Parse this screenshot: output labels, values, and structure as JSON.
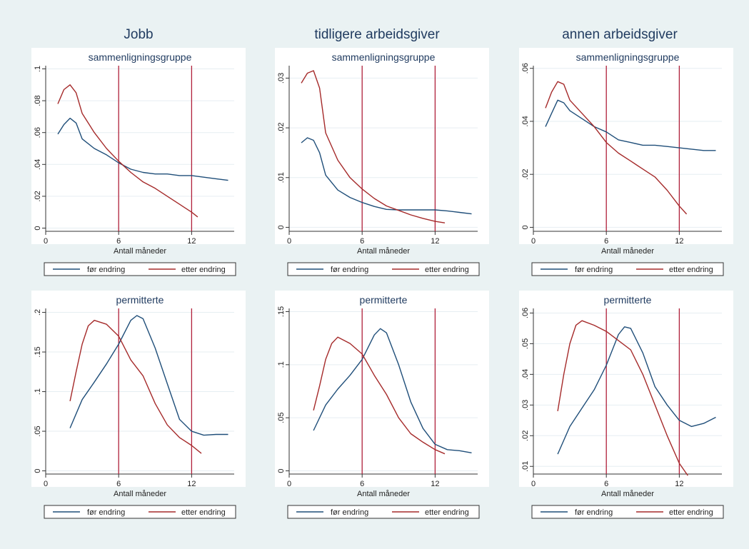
{
  "colors": {
    "before": "#1f4e79",
    "after": "#a52a2a",
    "vline": "#b0203a",
    "background": "#eaf2f3",
    "plot": "#ffffff",
    "grid": "#e6eef2"
  },
  "columns": [
    {
      "title": "Jobb"
    },
    {
      "title": "tidligere arbeidsgiver"
    },
    {
      "title": "annen arbeidsgiver"
    }
  ],
  "legend": {
    "before": "før endring",
    "after": "etter endring"
  },
  "chart_data": [
    {
      "type": "line",
      "column": 0,
      "row": 0,
      "title": "sammenligningsgruppe",
      "xlabel": "Antall måneder",
      "xlim": [
        0,
        15.5
      ],
      "xticks": [
        0,
        6,
        12
      ],
      "ylim": [
        -0.002,
        0.102
      ],
      "yticks": [
        0,
        0.02,
        0.04,
        0.06,
        0.08,
        0.1
      ],
      "ytick_labels": [
        "0",
        ".02",
        ".04",
        ".06",
        ".08",
        ".1"
      ],
      "vlines": [
        6,
        12
      ],
      "series": [
        {
          "name": "før endring",
          "points": [
            [
              1,
              0.059
            ],
            [
              1.5,
              0.065
            ],
            [
              2,
              0.069
            ],
            [
              2.5,
              0.066
            ],
            [
              3,
              0.056
            ],
            [
              4,
              0.05
            ],
            [
              5,
              0.046
            ],
            [
              6,
              0.041
            ],
            [
              7,
              0.037
            ],
            [
              8,
              0.035
            ],
            [
              9,
              0.034
            ],
            [
              10,
              0.034
            ],
            [
              11,
              0.033
            ],
            [
              12,
              0.033
            ],
            [
              13,
              0.032
            ],
            [
              14,
              0.031
            ],
            [
              15,
              0.03
            ]
          ]
        },
        {
          "name": "etter endring",
          "points": [
            [
              1,
              0.078
            ],
            [
              1.5,
              0.087
            ],
            [
              2,
              0.09
            ],
            [
              2.5,
              0.085
            ],
            [
              3,
              0.072
            ],
            [
              4,
              0.06
            ],
            [
              5,
              0.05
            ],
            [
              6,
              0.042
            ],
            [
              7,
              0.035
            ],
            [
              8,
              0.029
            ],
            [
              9,
              0.025
            ],
            [
              10,
              0.02
            ],
            [
              11,
              0.015
            ],
            [
              12,
              0.01
            ],
            [
              12.5,
              0.007
            ]
          ]
        }
      ]
    },
    {
      "type": "line",
      "column": 1,
      "row": 0,
      "title": "sammenligningsgruppe",
      "xlabel": "Antall måneder",
      "xlim": [
        0,
        15.5
      ],
      "xticks": [
        0,
        6,
        12
      ],
      "ylim": [
        -0.0008,
        0.0325
      ],
      "yticks": [
        0,
        0.01,
        0.02,
        0.03
      ],
      "ytick_labels": [
        "0",
        ".01",
        ".02",
        ".03"
      ],
      "vlines": [
        6,
        12
      ],
      "series": [
        {
          "name": "før endring",
          "points": [
            [
              1,
              0.017
            ],
            [
              1.5,
              0.018
            ],
            [
              2,
              0.0175
            ],
            [
              2.5,
              0.015
            ],
            [
              3,
              0.0105
            ],
            [
              4,
              0.0075
            ],
            [
              5,
              0.006
            ],
            [
              6,
              0.005
            ],
            [
              7,
              0.0042
            ],
            [
              8,
              0.0036
            ],
            [
              9,
              0.0035
            ],
            [
              10,
              0.0035
            ],
            [
              11,
              0.0035
            ],
            [
              12,
              0.0035
            ],
            [
              13,
              0.0033
            ],
            [
              14,
              0.003
            ],
            [
              15,
              0.0027
            ]
          ]
        },
        {
          "name": "etter endring",
          "points": [
            [
              1,
              0.029
            ],
            [
              1.5,
              0.031
            ],
            [
              2,
              0.0315
            ],
            [
              2.5,
              0.028
            ],
            [
              3,
              0.019
            ],
            [
              4,
              0.0135
            ],
            [
              5,
              0.01
            ],
            [
              6,
              0.0077
            ],
            [
              7,
              0.0058
            ],
            [
              8,
              0.0043
            ],
            [
              9,
              0.0034
            ],
            [
              10,
              0.0025
            ],
            [
              11,
              0.0018
            ],
            [
              12,
              0.0012
            ],
            [
              12.8,
              0.0009
            ]
          ]
        }
      ]
    },
    {
      "type": "line",
      "column": 2,
      "row": 0,
      "title": "sammenligningsgruppe",
      "xlabel": "Antall måneder",
      "xlim": [
        0,
        15.5
      ],
      "xticks": [
        0,
        6,
        12
      ],
      "ylim": [
        -0.0015,
        0.061
      ],
      "yticks": [
        0,
        0.02,
        0.04,
        0.06
      ],
      "ytick_labels": [
        "0",
        ".02",
        ".04",
        ".06"
      ],
      "vlines": [
        6,
        12
      ],
      "series": [
        {
          "name": "før endring",
          "points": [
            [
              1,
              0.038
            ],
            [
              1.5,
              0.043
            ],
            [
              2,
              0.048
            ],
            [
              2.5,
              0.047
            ],
            [
              3,
              0.044
            ],
            [
              4,
              0.041
            ],
            [
              5,
              0.038
            ],
            [
              6,
              0.036
            ],
            [
              7,
              0.033
            ],
            [
              8,
              0.032
            ],
            [
              9,
              0.031
            ],
            [
              10,
              0.031
            ],
            [
              11,
              0.0305
            ],
            [
              12,
              0.03
            ],
            [
              13,
              0.0295
            ],
            [
              14,
              0.029
            ],
            [
              15,
              0.029
            ]
          ]
        },
        {
          "name": "etter endring",
          "points": [
            [
              1,
              0.045
            ],
            [
              1.5,
              0.051
            ],
            [
              2,
              0.055
            ],
            [
              2.5,
              0.054
            ],
            [
              3,
              0.048
            ],
            [
              4,
              0.043
            ],
            [
              5,
              0.038
            ],
            [
              6,
              0.032
            ],
            [
              7,
              0.028
            ],
            [
              8,
              0.025
            ],
            [
              9,
              0.022
            ],
            [
              10,
              0.019
            ],
            [
              11,
              0.014
            ],
            [
              12,
              0.008
            ],
            [
              12.6,
              0.005
            ]
          ]
        }
      ]
    },
    {
      "type": "line",
      "column": 0,
      "row": 1,
      "title": "permitterte",
      "xlabel": "Antall måneder",
      "xlim": [
        0,
        15.5
      ],
      "xticks": [
        0,
        6,
        12
      ],
      "ylim": [
        -0.004,
        0.205
      ],
      "yticks": [
        0,
        0.05,
        0.1,
        0.15,
        0.2
      ],
      "ytick_labels": [
        "0",
        ".05",
        ".1",
        ".15",
        ".2"
      ],
      "vlines": [
        6,
        12
      ],
      "series": [
        {
          "name": "før endring",
          "points": [
            [
              2,
              0.054
            ],
            [
              3,
              0.09
            ],
            [
              4,
              0.112
            ],
            [
              5,
              0.135
            ],
            [
              6,
              0.16
            ],
            [
              7,
              0.19
            ],
            [
              7.5,
              0.196
            ],
            [
              8,
              0.192
            ],
            [
              9,
              0.155
            ],
            [
              10,
              0.11
            ],
            [
              11,
              0.065
            ],
            [
              12,
              0.05
            ],
            [
              13,
              0.045
            ],
            [
              14,
              0.046
            ],
            [
              15,
              0.046
            ]
          ]
        },
        {
          "name": "etter endring",
          "points": [
            [
              2,
              0.088
            ],
            [
              2.5,
              0.125
            ],
            [
              3,
              0.16
            ],
            [
              3.5,
              0.183
            ],
            [
              4,
              0.19
            ],
            [
              5,
              0.185
            ],
            [
              6,
              0.17
            ],
            [
              7,
              0.14
            ],
            [
              8,
              0.12
            ],
            [
              9,
              0.085
            ],
            [
              10,
              0.058
            ],
            [
              11,
              0.042
            ],
            [
              12,
              0.032
            ],
            [
              12.8,
              0.022
            ]
          ]
        }
      ]
    },
    {
      "type": "line",
      "column": 1,
      "row": 1,
      "title": "permitterte",
      "xlabel": "Antall måneder",
      "xlim": [
        0,
        15.5
      ],
      "xticks": [
        0,
        6,
        12
      ],
      "ylim": [
        -0.003,
        0.153
      ],
      "yticks": [
        0,
        0.05,
        0.1,
        0.15
      ],
      "ytick_labels": [
        "0",
        ".05",
        ".1",
        ".15"
      ],
      "vlines": [
        6,
        12
      ],
      "series": [
        {
          "name": "før endring",
          "points": [
            [
              2,
              0.038
            ],
            [
              3,
              0.062
            ],
            [
              4,
              0.077
            ],
            [
              5,
              0.09
            ],
            [
              6,
              0.105
            ],
            [
              7,
              0.128
            ],
            [
              7.5,
              0.134
            ],
            [
              8,
              0.13
            ],
            [
              9,
              0.1
            ],
            [
              10,
              0.065
            ],
            [
              11,
              0.04
            ],
            [
              12,
              0.025
            ],
            [
              13,
              0.02
            ],
            [
              14,
              0.019
            ],
            [
              15,
              0.017
            ]
          ]
        },
        {
          "name": "etter endring",
          "points": [
            [
              2,
              0.057
            ],
            [
              2.5,
              0.08
            ],
            [
              3,
              0.105
            ],
            [
              3.5,
              0.12
            ],
            [
              4,
              0.126
            ],
            [
              5,
              0.12
            ],
            [
              6,
              0.11
            ],
            [
              7,
              0.09
            ],
            [
              8,
              0.072
            ],
            [
              9,
              0.05
            ],
            [
              10,
              0.035
            ],
            [
              11,
              0.027
            ],
            [
              12,
              0.02
            ],
            [
              12.8,
              0.016
            ]
          ]
        }
      ]
    },
    {
      "type": "line",
      "column": 2,
      "row": 1,
      "title": "permitterte",
      "xlabel": "Antall måneder",
      "xlim": [
        0,
        15.5
      ],
      "xticks": [
        0,
        6,
        12
      ],
      "ylim": [
        0.0075,
        0.0615
      ],
      "yticks": [
        0.01,
        0.02,
        0.03,
        0.04,
        0.05,
        0.06
      ],
      "ytick_labels": [
        ".01",
        ".02",
        ".03",
        ".04",
        ".05",
        ".06"
      ],
      "vlines": [
        6,
        12
      ],
      "series": [
        {
          "name": "før endring",
          "points": [
            [
              2,
              0.014
            ],
            [
              3,
              0.023
            ],
            [
              4,
              0.029
            ],
            [
              5,
              0.035
            ],
            [
              6,
              0.043
            ],
            [
              7,
              0.053
            ],
            [
              7.5,
              0.0555
            ],
            [
              8,
              0.055
            ],
            [
              9,
              0.047
            ],
            [
              10,
              0.036
            ],
            [
              11,
              0.03
            ],
            [
              12,
              0.025
            ],
            [
              13,
              0.023
            ],
            [
              14,
              0.024
            ],
            [
              15,
              0.026
            ]
          ]
        },
        {
          "name": "etter endring",
          "points": [
            [
              2,
              0.028
            ],
            [
              2.5,
              0.04
            ],
            [
              3,
              0.05
            ],
            [
              3.5,
              0.056
            ],
            [
              4,
              0.0575
            ],
            [
              5,
              0.056
            ],
            [
              6,
              0.054
            ],
            [
              7,
              0.051
            ],
            [
              8,
              0.048
            ],
            [
              9,
              0.04
            ],
            [
              10,
              0.03
            ],
            [
              11,
              0.02
            ],
            [
              12,
              0.011
            ],
            [
              12.7,
              0.007
            ]
          ]
        }
      ]
    }
  ]
}
